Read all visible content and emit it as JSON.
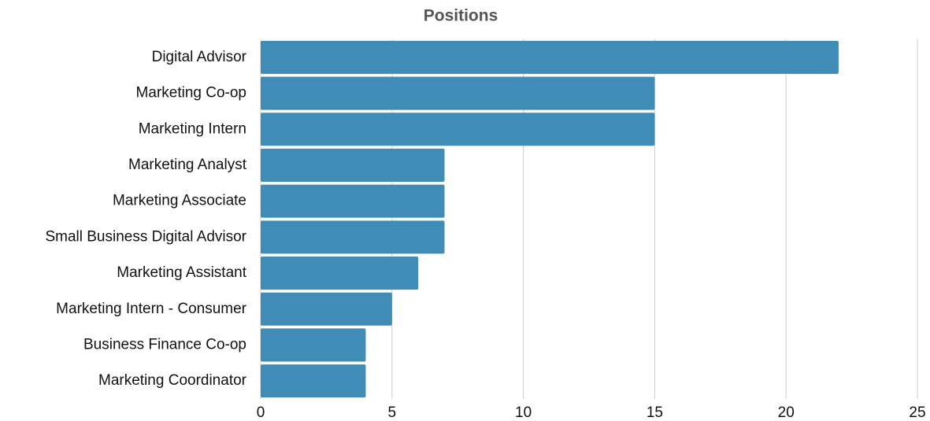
{
  "chart_data": {
    "type": "bar",
    "orientation": "horizontal",
    "title": "Positions",
    "categories": [
      "Digital Advisor",
      "Marketing Co-op",
      "Marketing Intern",
      "Marketing Analyst",
      "Marketing Associate",
      "Small Business Digital Advisor",
      "Marketing Assistant",
      "Marketing Intern - Consumer",
      "Business Finance Co-op",
      "Marketing Coordinator"
    ],
    "values": [
      22,
      15,
      15,
      7,
      7,
      7,
      6,
      5,
      4,
      4
    ],
    "color": "#3f8db6",
    "xlim": [
      0,
      25
    ],
    "xticks": [
      0,
      5,
      10,
      15,
      20,
      25
    ],
    "grid": true
  }
}
